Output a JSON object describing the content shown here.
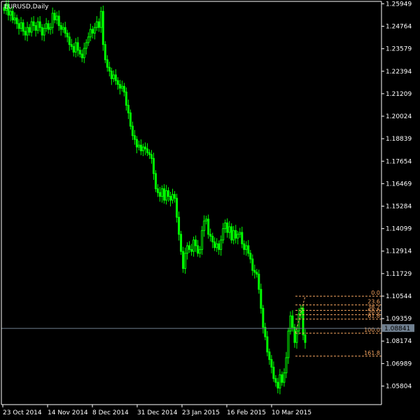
{
  "chart_data": {
    "type": "candlestick",
    "symbol_label": "EURUSD,Daily",
    "ylim": [
      1.049,
      1.26
    ],
    "y_ticks": [
      "1.25949",
      "1.24764",
      "1.23579",
      "1.22394",
      "1.21209",
      "1.20024",
      "1.18839",
      "1.17654",
      "1.16469",
      "1.15284",
      "1.14099",
      "1.12914",
      "1.11729",
      "1.10544",
      "1.09359",
      "1.08174",
      "1.06989",
      "1.05804"
    ],
    "x_ticks": [
      "23 Oct 2014",
      "14 Nov 2014",
      "8 Dec 2014",
      "31 Dec 2014",
      "23 Jan 2015",
      "16 Feb 2015",
      "10 Mar 2015"
    ],
    "current_price": "1.08841",
    "series": [
      {
        "name": "",
        "close": [
          1.256,
          1.259,
          1.2535,
          1.2555,
          1.251,
          1.252,
          1.249,
          1.2465,
          1.2495,
          1.245,
          1.243,
          1.247,
          1.2445,
          1.25,
          1.248,
          1.2455,
          1.25,
          1.247,
          1.243,
          1.2465,
          1.249,
          1.246,
          1.247,
          1.2545,
          1.251,
          1.253,
          1.248,
          1.246,
          1.247,
          1.244,
          1.242,
          1.238,
          1.237,
          1.234,
          1.239,
          1.235,
          1.233,
          1.231,
          1.236,
          1.239,
          1.242,
          1.246,
          1.244,
          1.247,
          1.25,
          1.247,
          1.2555,
          1.238,
          1.23,
          1.226,
          1.224,
          1.22,
          1.222,
          1.219,
          1.217,
          1.215,
          1.216,
          1.213,
          1.206,
          1.202,
          1.195,
          1.19,
          1.188,
          1.184,
          1.185,
          1.182,
          1.184,
          1.183,
          1.181,
          1.18,
          1.178,
          1.17,
          1.162,
          1.16,
          1.158,
          1.162,
          1.156,
          1.161,
          1.158,
          1.156,
          1.159,
          1.157,
          1.147,
          1.138,
          1.129,
          1.12,
          1.128,
          1.132,
          1.13,
          1.129,
          1.135,
          1.132,
          1.128,
          1.13,
          1.14,
          1.145,
          1.146,
          1.138,
          1.137,
          1.134,
          1.131,
          1.133,
          1.13,
          1.135,
          1.141,
          1.144,
          1.139,
          1.142,
          1.135,
          1.14,
          1.136,
          1.138,
          1.139,
          1.133,
          1.13,
          1.132,
          1.128,
          1.125,
          1.119,
          1.118,
          1.117,
          1.109,
          1.099,
          1.089,
          1.084,
          1.076,
          1.072,
          1.068,
          1.062,
          1.06,
          1.057,
          1.064,
          1.06,
          1.065,
          1.073,
          1.087,
          1.095,
          1.089,
          1.081,
          1.087,
          1.096,
          1.099,
          1.085,
          1.081
        ]
      }
    ],
    "fib_levels": [
      {
        "label": "0.0",
        "price": 1.1054
      },
      {
        "label": "23.6",
        "price": 1.1008
      },
      {
        "label": "38.2",
        "price": 1.0979
      },
      {
        "label": "50.0",
        "price": 1.0956
      },
      {
        "label": "61.8",
        "price": 1.0933
      },
      {
        "label": "100.0",
        "price": 1.0859
      },
      {
        "label": "161.8",
        "price": 1.0738
      }
    ],
    "colors": {
      "bg": "#000000",
      "candle": "#00ff00",
      "axis": "#ffffff",
      "fib": "#f4a460",
      "price_line": "#708090",
      "price_label_bg": "#708090"
    }
  }
}
